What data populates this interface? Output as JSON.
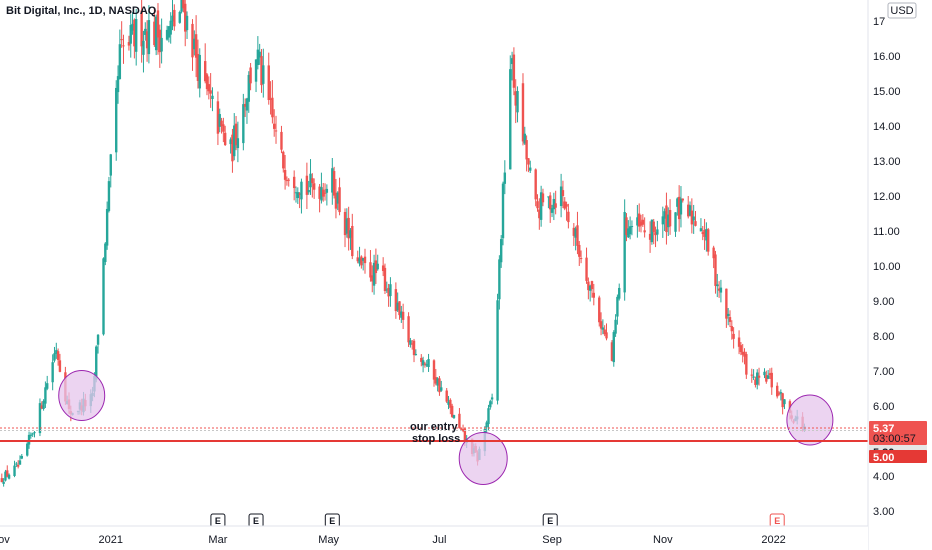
{
  "chart_data": {
    "type": "candlestick",
    "title": "Bit Digital, Inc., 1D, NASDAQ",
    "currency_label": "USD",
    "ylim": [
      2.6,
      17.6
    ],
    "y_ticks": [
      {
        "value": 3.0,
        "label": "3.00"
      },
      {
        "value": 4.0,
        "label": "4.00"
      },
      {
        "value": 5.0,
        "label": "5.00"
      },
      {
        "value": 6.0,
        "label": "6.00"
      },
      {
        "value": 7.0,
        "label": "7.00"
      },
      {
        "value": 8.0,
        "label": "8.00"
      },
      {
        "value": 9.0,
        "label": "9.00"
      },
      {
        "value": 10.0,
        "label": "10.00"
      },
      {
        "value": 11.0,
        "label": "11.00"
      },
      {
        "value": 12.0,
        "label": "12.00"
      },
      {
        "value": 13.0,
        "label": "13.00"
      },
      {
        "value": 14.0,
        "label": "14.00"
      },
      {
        "value": 15.0,
        "label": "15.00"
      },
      {
        "value": 16.0,
        "label": "16.00"
      },
      {
        "value": 17.0,
        "label": "17"
      }
    ],
    "x_range": [
      "2020-11-01",
      "2022-02-22"
    ],
    "x_ticks": [
      {
        "date": "2020-11-01",
        "label": "Nov"
      },
      {
        "date": "2021-01-01",
        "label": "2021"
      },
      {
        "date": "2021-03-01",
        "label": "Mar"
      },
      {
        "date": "2021-05-01",
        "label": "May"
      },
      {
        "date": "2021-07-01",
        "label": "Jul"
      },
      {
        "date": "2021-09-01",
        "label": "Sep"
      },
      {
        "date": "2021-11-01",
        "label": "Nov"
      },
      {
        "date": "2022-01-01",
        "label": "2022"
      }
    ],
    "price_path": [
      [
        "2020-11-01",
        3.9
      ],
      [
        "2020-11-12",
        4.3
      ],
      [
        "2020-11-22",
        5.7
      ],
      [
        "2020-12-02",
        7.7
      ],
      [
        "2020-12-09",
        5.8
      ],
      [
        "2020-12-22",
        6.2
      ],
      [
        "2020-12-29",
        10.8
      ],
      [
        "2021-01-06",
        16.0
      ],
      [
        "2021-01-18",
        16.8
      ],
      [
        "2021-02-01",
        16.6
      ],
      [
        "2021-02-10",
        17.4
      ],
      [
        "2021-02-22",
        15.0
      ],
      [
        "2021-03-08",
        13.2
      ],
      [
        "2021-03-22",
        16.1
      ],
      [
        "2021-04-05",
        13.0
      ],
      [
        "2021-04-19",
        12.2
      ],
      [
        "2021-05-03",
        12.4
      ],
      [
        "2021-05-17",
        10.0
      ],
      [
        "2021-05-31",
        9.7
      ],
      [
        "2021-06-14",
        7.9
      ],
      [
        "2021-06-28",
        6.9
      ],
      [
        "2021-07-12",
        5.3
      ],
      [
        "2021-07-22",
        4.5
      ],
      [
        "2021-07-30",
        6.2
      ],
      [
        "2021-08-09",
        15.8
      ],
      [
        "2021-08-23",
        11.6
      ],
      [
        "2021-09-06",
        12.1
      ],
      [
        "2021-09-20",
        9.8
      ],
      [
        "2021-10-04",
        7.3
      ],
      [
        "2021-10-11",
        11.2
      ],
      [
        "2021-10-25",
        10.9
      ],
      [
        "2021-11-08",
        11.6
      ],
      [
        "2021-11-22",
        11.3
      ],
      [
        "2021-12-06",
        8.6
      ],
      [
        "2021-12-20",
        6.7
      ],
      [
        "2021-12-29",
        6.8
      ],
      [
        "2022-01-10",
        5.8
      ],
      [
        "2022-01-18",
        5.4
      ]
    ],
    "earnings_markers": [
      {
        "date": "2021-03-01",
        "label": "E",
        "color": "#131722"
      },
      {
        "date": "2021-03-22",
        "label": "E",
        "color": "#131722"
      },
      {
        "date": "2021-05-03",
        "label": "E",
        "color": "#131722"
      },
      {
        "date": "2021-08-31",
        "label": "E",
        "color": "#131722"
      },
      {
        "date": "2022-01-03",
        "label": "E",
        "color": "#ef5350"
      }
    ],
    "horizontal_lines": [
      {
        "value": 5.37,
        "label": "5.37",
        "color": "#ef5350"
      },
      {
        "value": 5.3,
        "label": "5.30",
        "color": "#c7c7c7"
      },
      {
        "value": 5.0,
        "label": "5.00",
        "color": "#e53935"
      }
    ],
    "countdown_label": "03:00:57",
    "annotations": [
      "our entry",
      "stop loss"
    ],
    "highlight_ellipses": [
      "2020-12-16",
      "2021-07-24",
      "2022-01-21"
    ],
    "colors": {
      "up": "#26a69a",
      "down": "#ef5350",
      "ellipse_fill": "#e6c6ec",
      "ellipse_stroke": "#9c27b0",
      "axis_text": "#131722"
    }
  }
}
